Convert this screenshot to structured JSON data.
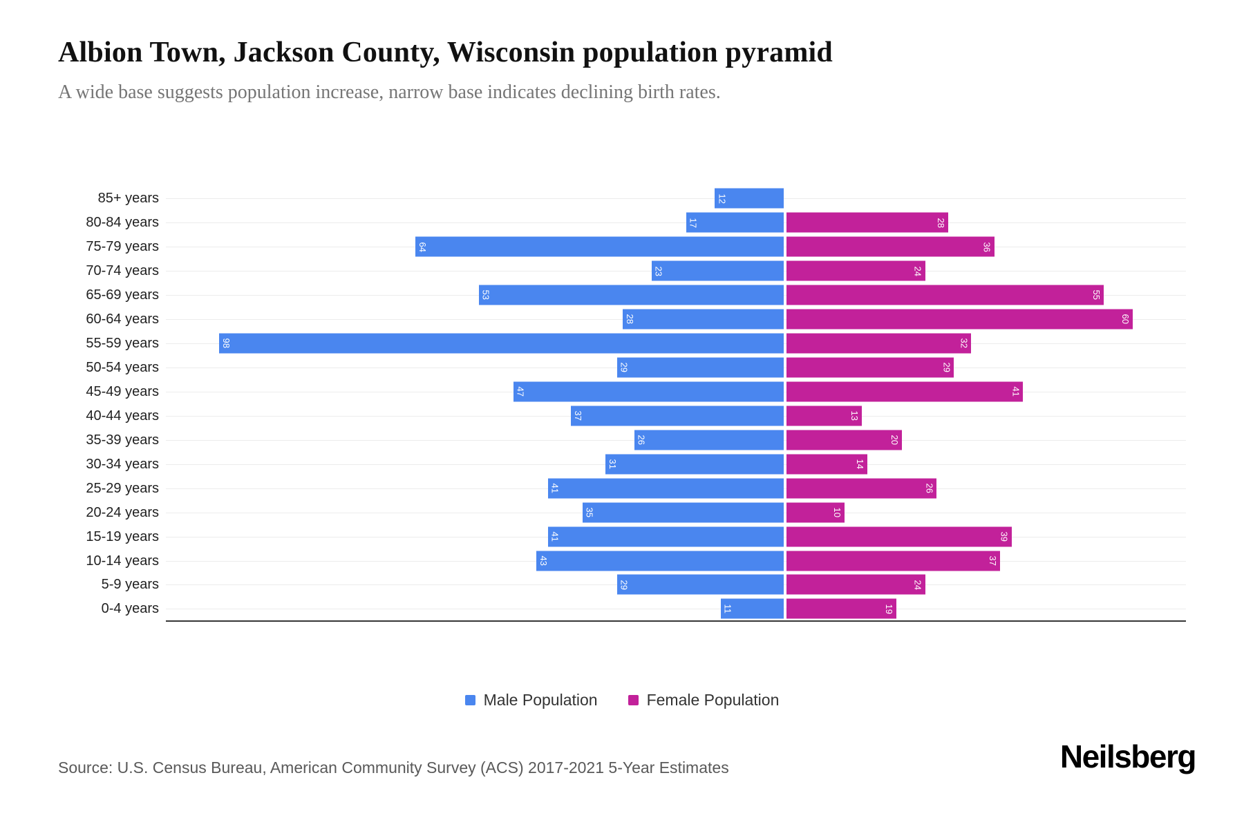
{
  "title": "Albion Town, Jackson County, Wisconsin population pyramid",
  "subtitle": "A wide base suggests population increase, narrow base indicates declining birth rates.",
  "legend": {
    "male": "Male Population",
    "female": "Female Population"
  },
  "footer": {
    "source": "Source: U.S. Census Bureau, American Community Survey (ACS) 2017-2021 5-Year Estimates",
    "brand": "Neilsberg"
  },
  "colors": {
    "male": "#4a86ef",
    "female": "#c2219a",
    "grid": "#ececec",
    "axis": "#363636"
  },
  "chart_data": {
    "type": "bar",
    "orientation": "horizontal population pyramid, male left, female right",
    "title": "Albion Town, Jackson County, Wisconsin population pyramid",
    "categories": [
      "85+ years",
      "80-84 years",
      "75-79 years",
      "70-74 years",
      "65-69 years",
      "60-64 years",
      "55-59 years",
      "50-54 years",
      "45-49 years",
      "40-44 years",
      "35-39 years",
      "30-34 years",
      "25-29 years",
      "20-24 years",
      "15-19 years",
      "10-14 years",
      "5-9 years",
      "0-4 years"
    ],
    "series": [
      {
        "name": "Male Population",
        "color": "#4a86ef",
        "values": [
          12,
          17,
          64,
          23,
          53,
          28,
          98,
          29,
          47,
          37,
          26,
          31,
          41,
          35,
          41,
          43,
          29,
          11
        ]
      },
      {
        "name": "Female Population",
        "color": "#c2219a",
        "values": [
          0,
          28,
          36,
          24,
          55,
          60,
          32,
          29,
          41,
          13,
          20,
          14,
          26,
          10,
          39,
          37,
          24,
          19
        ]
      }
    ],
    "xlim": [
      -107.5,
      69.5
    ],
    "grid": "horizontal gridlines at each category row",
    "legend_position": "bottom",
    "bar_value_labels": "inside bar at outer end, white, rotated 90deg"
  }
}
